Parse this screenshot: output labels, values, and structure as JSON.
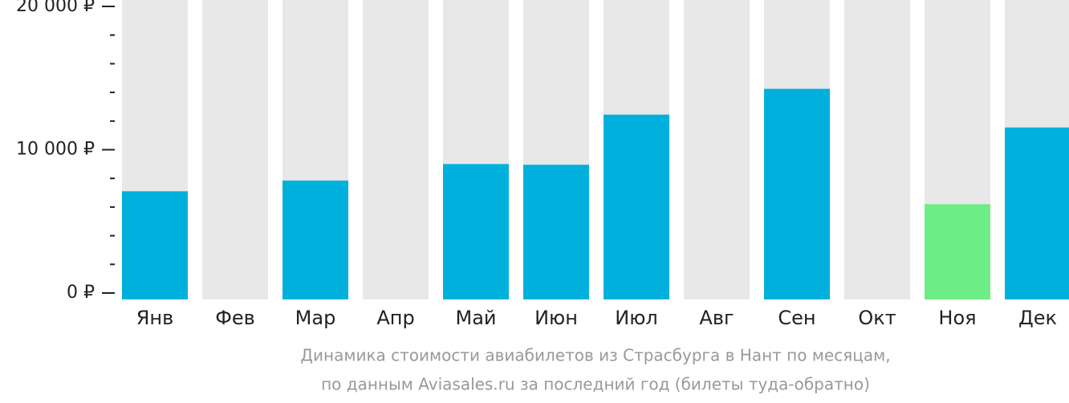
{
  "chart_data": {
    "type": "bar",
    "subtitle_lines": [
      "Динамика стоимости авиабилетов из Страсбурга в Нант по месяцам,",
      "по данным Aviasales.ru за последний год (билеты туда-обратно)"
    ],
    "categories": [
      "Янв",
      "Фев",
      "Мар",
      "Апр",
      "Май",
      "Июн",
      "Июл",
      "Авг",
      "Сен",
      "Окт",
      "Ноя",
      "Дек"
    ],
    "values": [
      7100,
      null,
      7850,
      null,
      9000,
      8950,
      12450,
      null,
      14250,
      null,
      6200,
      11550
    ],
    "colors": [
      "#00b0dc",
      "#00b0dc",
      "#00b0dc",
      "#00b0dc",
      "#00b0dc",
      "#00b0dc",
      "#00b0dc",
      "#00b0dc",
      "#00b0dc",
      "#00b0dc",
      "#6ced86",
      "#00b0dc"
    ],
    "background_color": "#e8e8e8",
    "ylim": [
      0,
      20000
    ],
    "yticks": [
      {
        "value": 0,
        "label": "0 ₽"
      },
      {
        "value": 10000,
        "label": "10 000 ₽"
      },
      {
        "value": 20000,
        "label": "20 000 ₽"
      }
    ],
    "minor_yticks": [
      2000,
      4000,
      6000,
      8000,
      12000,
      14000,
      16000,
      18000
    ]
  }
}
